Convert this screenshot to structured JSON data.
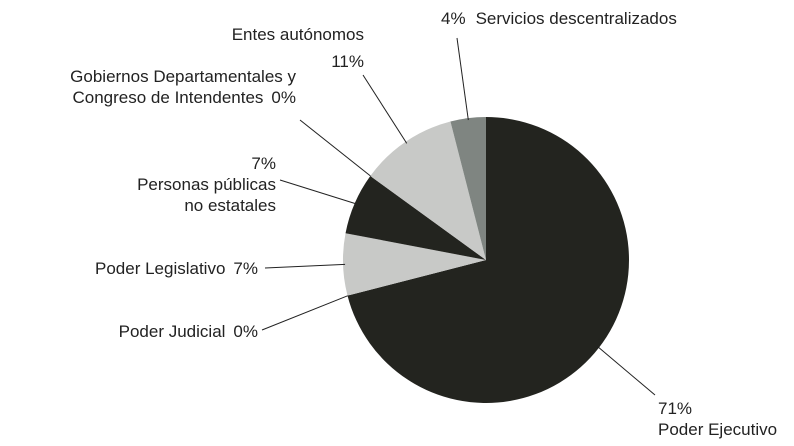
{
  "chart_data": {
    "type": "pie",
    "categories": [
      "Poder Ejecutivo",
      "Poder Judicial",
      "Poder Legislativo",
      "Personas públicas\nno estatales",
      "Gobiernos Departamentales y\nCongreso de Intendentes",
      "Entes autónomos",
      "Servicios descentralizados"
    ],
    "values": [
      71,
      0,
      7,
      7,
      0,
      11,
      4
    ],
    "value_labels": [
      "71%",
      "0%",
      "7%",
      "7%",
      "0%",
      "11%",
      "4%"
    ],
    "colors": [
      "#23241f",
      "#23241f",
      "#c8c9c7",
      "#23241f",
      "#23241f",
      "#c8c9c7",
      "#7f8581"
    ]
  }
}
